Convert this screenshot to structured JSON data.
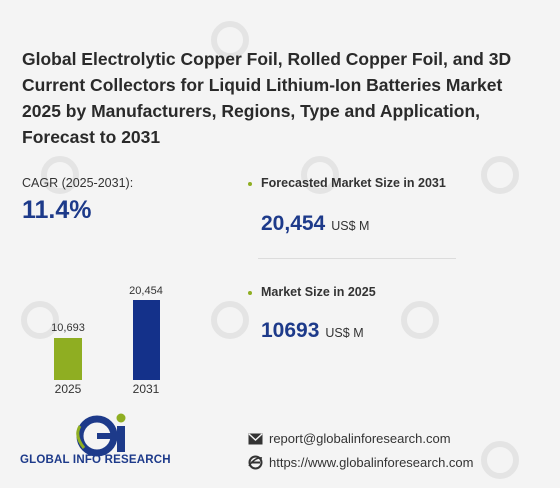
{
  "title": "Global Electrolytic Copper Foil, Rolled Copper Foil, and 3D Current Collectors for Liquid Lithium-Ion Batteries Market 2025 by Manufacturers, Regions, Type and Application, Forecast to 2031",
  "cagr": {
    "label": "CAGR (2025-2031):",
    "value": "11.4%"
  },
  "forecast": {
    "label": "Forecasted Market Size in 2031",
    "value": "20,454",
    "unit": "US$ M"
  },
  "current": {
    "label": "Market Size in 2025",
    "value": "10693",
    "unit": "US$ M"
  },
  "chart_data": {
    "type": "bar",
    "categories": [
      "2025",
      "2031"
    ],
    "values": [
      10693,
      20454
    ],
    "value_labels": [
      "10,693",
      "20,454"
    ],
    "colors": [
      "#8fae22",
      "#14318a"
    ]
  },
  "contact": {
    "email": "report@globalinforesearch.com",
    "website": "https://www.globalinforesearch.com"
  },
  "logo": {
    "text": "GLOBAL INFO RESEARCH"
  },
  "colors": {
    "brand_blue": "#1d3a8a",
    "accent_green": "#8fae22"
  },
  "icons": {
    "email": "email-icon",
    "web": "web-icon",
    "bullet": "bullet-icon"
  }
}
